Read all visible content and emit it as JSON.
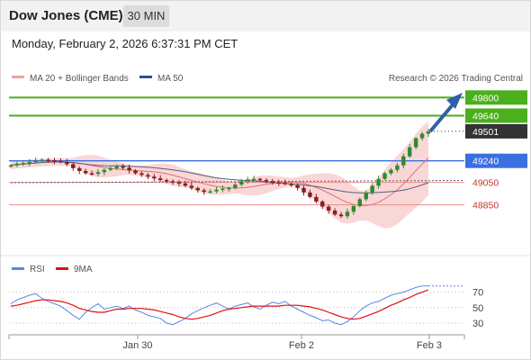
{
  "header": {
    "title": "Dow Jones (CME)",
    "timeframe": "30 MIN"
  },
  "datetime": "Monday, February 2, 2026 6:37:31 PM CET",
  "legend": {
    "item1": "MA 20 + Bollinger Bands",
    "item2": "MA 50",
    "credit": "Research © 2026 Trading Central"
  },
  "rsi_legend": {
    "item1": "RSI",
    "item2": "9MA"
  },
  "colors": {
    "bollinger": "#f7c9c9",
    "ma20": "#e07070",
    "ma50": "#55607a",
    "bull": "#2f8a2f",
    "bear": "#8b1d1d",
    "resistance": "#4caf1c",
    "pivot": "#3a6fe0",
    "support": "#f08a8a",
    "rsi": "#5b86e5",
    "rsi_ma": "#e01010",
    "arrow": "#2f5fa8"
  },
  "chart_data": {
    "type": "line",
    "title": "Dow Jones (CME)",
    "interval": "30 MIN",
    "x_ticks": [
      "Jan 30",
      "Feb 2",
      "Feb 3"
    ],
    "price_levels": [
      {
        "label": "49800",
        "value": 49800,
        "kind": "resistance"
      },
      {
        "label": "49640",
        "value": 49640,
        "kind": "resistance"
      },
      {
        "label": "49501",
        "value": 49501,
        "kind": "last"
      },
      {
        "label": "49240",
        "value": 49240,
        "kind": "pivot"
      },
      {
        "label": "49050",
        "value": 49050,
        "kind": "support"
      },
      {
        "label": "48850",
        "value": 48850,
        "kind": "support"
      }
    ],
    "price_close": [
      49200,
      49215,
      49220,
      49230,
      49240,
      49250,
      49245,
      49238,
      49230,
      49210,
      49175,
      49150,
      49130,
      49125,
      49140,
      49160,
      49175,
      49190,
      49180,
      49155,
      49130,
      49115,
      49100,
      49085,
      49070,
      49060,
      49050,
      49040,
      49020,
      49000,
      48980,
      48965,
      48970,
      48985,
      48995,
      49000,
      49030,
      49060,
      49075,
      49080,
      49070,
      49060,
      49050,
      49045,
      49035,
      49025,
      49000,
      48960,
      48920,
      48880,
      48835,
      48800,
      48765,
      48750,
      48790,
      48840,
      48900,
      48960,
      49020,
      49080,
      49130,
      49160,
      49200,
      49280,
      49360,
      49440,
      49480,
      49501
    ],
    "rsi_ylim": [
      20,
      85
    ],
    "rsi_ticks": [
      70,
      50,
      30
    ],
    "rsi_values": [
      55,
      60,
      63,
      66,
      68,
      62,
      58,
      55,
      52,
      46,
      40,
      35,
      44,
      50,
      55,
      48,
      50,
      52,
      49,
      52,
      47,
      44,
      40,
      38,
      36,
      30,
      28,
      32,
      36,
      42,
      46,
      50,
      53,
      56,
      52,
      48,
      52,
      54,
      56,
      51,
      48,
      53,
      57,
      55,
      58,
      52,
      48,
      44,
      40,
      37,
      33,
      34,
      30,
      28,
      32,
      38,
      46,
      52,
      56,
      58,
      62,
      66,
      68,
      70,
      73,
      76,
      78,
      78
    ],
    "rsi_ma": [
      52,
      53,
      55,
      57,
      59,
      60,
      60,
      59,
      58,
      56,
      53,
      49,
      47,
      45,
      44,
      44,
      46,
      48,
      48,
      49,
      49,
      49,
      48,
      47,
      45,
      43,
      41,
      38,
      36,
      35,
      36,
      38,
      40,
      43,
      46,
      48,
      49,
      50,
      51,
      52,
      52,
      52,
      52,
      52,
      53,
      53,
      53,
      52,
      51,
      49,
      47,
      44,
      41,
      38,
      36,
      35,
      36,
      39,
      42,
      45,
      49,
      53,
      56,
      60,
      63,
      67,
      70,
      73
    ]
  }
}
